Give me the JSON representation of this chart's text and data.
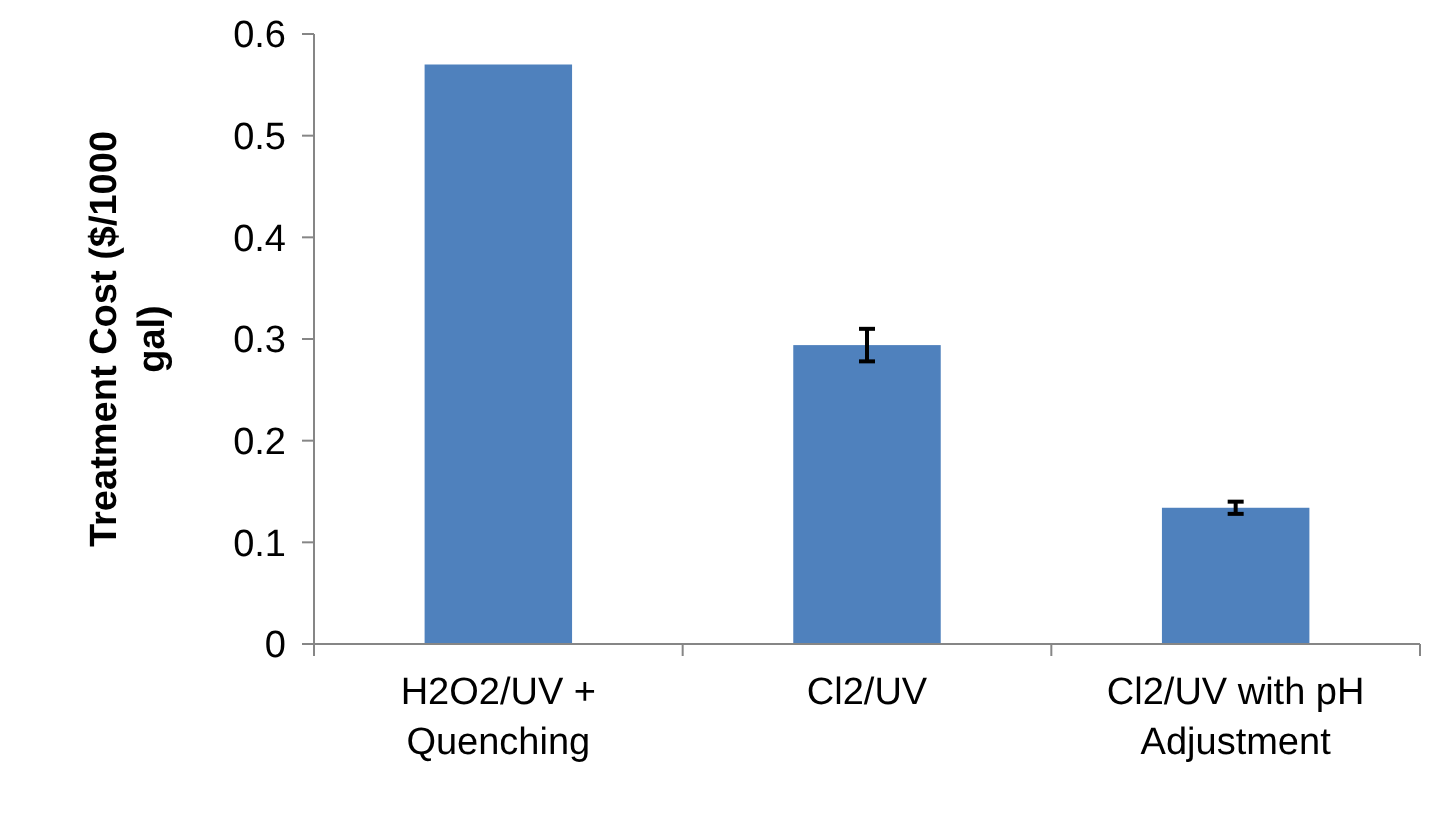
{
  "chart_data": {
    "type": "bar",
    "ylabel": "Treatment Cost ($/1000 gal)",
    "categories": [
      "H2O2/UV + Quenching",
      "Cl2/UV",
      "Cl2/UV with pH Adjustment"
    ],
    "values": [
      0.57,
      0.294,
      0.134
    ],
    "errors": [
      null,
      0.016,
      0.006
    ],
    "color": "#4f81bd",
    "ylim": [
      0,
      0.6
    ],
    "yticks": [
      0,
      0.1,
      0.2,
      0.3,
      0.4,
      0.5,
      0.6
    ],
    "grid": false
  }
}
